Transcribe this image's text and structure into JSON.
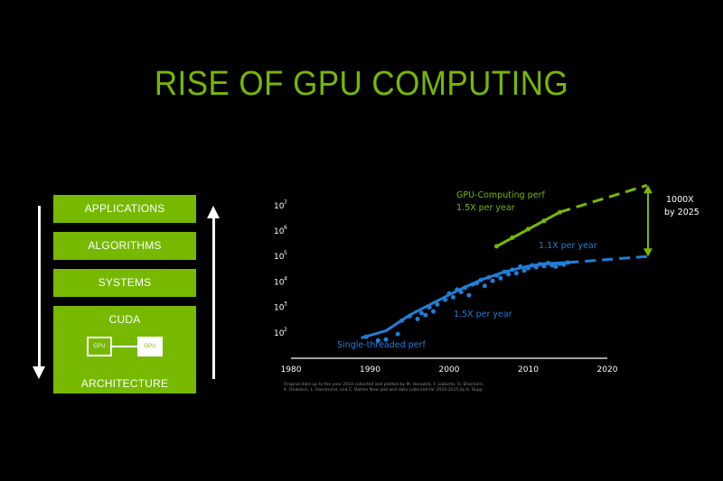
{
  "slide": {
    "title": "RISE OF GPU COMPUTING",
    "stack": {
      "layers": [
        "APPLICATIONS",
        "ALGORITHMS",
        "SYSTEMS"
      ],
      "cuda_label": "CUDA",
      "architecture_label": "ARCHITECTURE",
      "cpu_label": "CPU",
      "gpu_label": "GPU"
    },
    "annotations": {
      "gpu_series": "GPU-Computing perf",
      "gpu_rate": "1.5X per year",
      "cpu_rate_late": "1.1X per year",
      "cpu_rate_early": "1.5X per year",
      "cpu_series": "Single-threaded perf",
      "gap_line1": "1000X",
      "gap_line2": "by 2025"
    },
    "credit_line1": "Original data up to the year 2010 collected and plotted by M. Horowitz, F. Labonte, O. Shacham,",
    "credit_line2": "K. Olukotun, L. Hammond, and C. Batten New plot and data collected for 2010-2015 by K. Rupp",
    "colors": {
      "accent": "#76b900",
      "cpu": "#1f7fd8",
      "text": "#ffffff"
    }
  },
  "chart_data": {
    "type": "scatter",
    "x_ticks": [
      1980,
      1990,
      2000,
      2010,
      2020
    ],
    "y_ticks": [
      {
        "base": "10",
        "exp": "2",
        "value": 100
      },
      {
        "base": "10",
        "exp": "3",
        "value": 1000
      },
      {
        "base": "10",
        "exp": "4",
        "value": 10000
      },
      {
        "base": "10",
        "exp": "5",
        "value": 100000
      },
      {
        "base": "10",
        "exp": "6",
        "value": 1000000
      },
      {
        "base": "10",
        "exp": "7",
        "value": 10000000
      }
    ],
    "xlim": [
      1980,
      2020
    ],
    "ylim": [
      10,
      100000000
    ],
    "y_scale": "log",
    "grid": false,
    "series": [
      {
        "key": "gpu",
        "color": "#76b900",
        "points": [
          [
            2006,
            250000
          ],
          [
            2008,
            550000
          ],
          [
            2010,
            1200000
          ],
          [
            2012,
            2500000
          ],
          [
            2014,
            5500000
          ]
        ],
        "trend": [
          [
            2006,
            250000
          ],
          [
            2014,
            5500000
          ]
        ],
        "projection": [
          [
            2014,
            5500000
          ],
          [
            2025,
            63000000
          ]
        ]
      },
      {
        "key": "cpu",
        "color": "#1f7fd8",
        "points": [
          [
            1989.5,
            70
          ],
          [
            1991,
            50
          ],
          [
            1992,
            55
          ],
          [
            1993.5,
            90
          ],
          [
            1994,
            300
          ],
          [
            1995,
            450
          ],
          [
            1996,
            350
          ],
          [
            1996.5,
            600
          ],
          [
            1997,
            500
          ],
          [
            1997.5,
            1000
          ],
          [
            1998,
            700
          ],
          [
            1998.5,
            1300
          ],
          [
            1999.5,
            2000
          ],
          [
            2000,
            3500
          ],
          [
            2000.5,
            2500
          ],
          [
            2001,
            5000
          ],
          [
            2001.5,
            4000
          ],
          [
            2002,
            6000
          ],
          [
            2002.5,
            3000
          ],
          [
            2003,
            8000
          ],
          [
            2003.5,
            9000
          ],
          [
            2004,
            12000
          ],
          [
            2004.5,
            7000
          ],
          [
            2005,
            15000
          ],
          [
            2005.5,
            11000
          ],
          [
            2006,
            18000
          ],
          [
            2006.5,
            14000
          ],
          [
            2007,
            25000
          ],
          [
            2007.5,
            20000
          ],
          [
            2008,
            30000
          ],
          [
            2008.5,
            22000
          ],
          [
            2009,
            40000
          ],
          [
            2009.5,
            28000
          ],
          [
            2010,
            35000
          ],
          [
            2010.5,
            45000
          ],
          [
            2011,
            38000
          ],
          [
            2011.5,
            50000
          ],
          [
            2012,
            42000
          ],
          [
            2012.5,
            55000
          ],
          [
            2013,
            45000
          ],
          [
            2013.5,
            40000
          ],
          [
            2014,
            52000
          ],
          [
            2014.5,
            48000
          ],
          [
            2015,
            58000
          ]
        ],
        "trend": [
          [
            1989,
            65
          ],
          [
            1992,
            120
          ],
          [
            1995,
            500
          ],
          [
            1998,
            1500
          ],
          [
            2001,
            4500
          ],
          [
            2004,
            12000
          ],
          [
            2007,
            25000
          ],
          [
            2010,
            42000
          ],
          [
            2012,
            52000
          ],
          [
            2015,
            58000
          ]
        ],
        "projection": [
          [
            2015,
            58000
          ],
          [
            2025,
            100000
          ]
        ]
      }
    ]
  }
}
